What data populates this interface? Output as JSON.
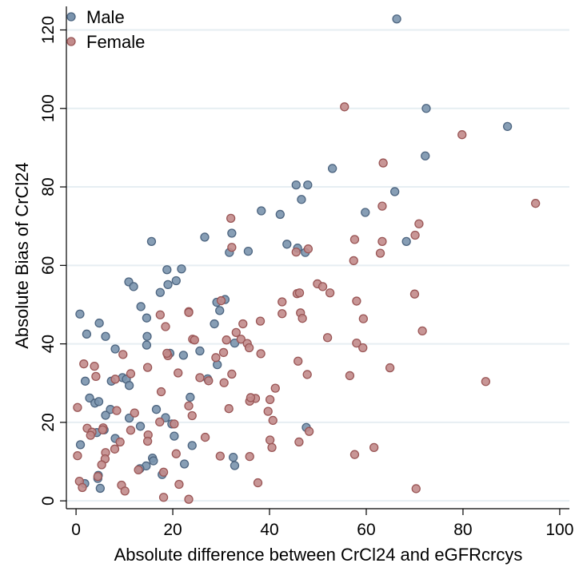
{
  "chart_data": {
    "type": "scatter",
    "xlabel": "Absolute difference between CrCl24 and eGFRcrcys",
    "ylabel": "Absolute Bias of CrCl24",
    "xlim": [
      -2,
      102
    ],
    "ylim": [
      -2,
      126
    ],
    "xticks": [
      0,
      20,
      40,
      60,
      80,
      100
    ],
    "yticks": [
      0,
      20,
      40,
      60,
      80,
      100,
      120
    ],
    "grid": true,
    "legend_position": "top-left",
    "series": [
      {
        "name": "Male",
        "color": "#5a7a9a",
        "points": [
          [
            66.3,
            122.8
          ],
          [
            72.4,
            100
          ],
          [
            89.2,
            95.4
          ],
          [
            72.2,
            87.9
          ],
          [
            53,
            84.7
          ],
          [
            45.5,
            80.5
          ],
          [
            47.9,
            80.5
          ],
          [
            65.9,
            78.8
          ],
          [
            46.6,
            76.8
          ],
          [
            38.3,
            73.9
          ],
          [
            42.2,
            73
          ],
          [
            59.8,
            73.5
          ],
          [
            26.6,
            67.2
          ],
          [
            32.2,
            68.2
          ],
          [
            15.6,
            66.1
          ],
          [
            68.3,
            66.1
          ],
          [
            43.6,
            65.4
          ],
          [
            45.8,
            64.4
          ],
          [
            31.7,
            63.3
          ],
          [
            35.6,
            63.6
          ],
          [
            47.4,
            63.3
          ],
          [
            18.8,
            58.9
          ],
          [
            21.8,
            59.1
          ],
          [
            10.9,
            55.8
          ],
          [
            20.7,
            56.1
          ],
          [
            19,
            55.1
          ],
          [
            11.9,
            54.6
          ],
          [
            17.4,
            53.1
          ],
          [
            13.4,
            49.5
          ],
          [
            30.8,
            51.3
          ],
          [
            29.1,
            50.6
          ],
          [
            29.7,
            48.5
          ],
          [
            0.8,
            47.6
          ],
          [
            14.6,
            46.6
          ],
          [
            4.8,
            45.3
          ],
          [
            28.6,
            45.1
          ],
          [
            6.1,
            41.9
          ],
          [
            2.2,
            42.5
          ],
          [
            14.7,
            41.9
          ],
          [
            14.6,
            39.7
          ],
          [
            32.8,
            40.2
          ],
          [
            8.1,
            38.7
          ],
          [
            19.4,
            37.6
          ],
          [
            22.2,
            37.1
          ],
          [
            25.6,
            38.2
          ],
          [
            9.6,
            31.4
          ],
          [
            10.4,
            31
          ],
          [
            7.3,
            30.5
          ],
          [
            11,
            29.4
          ],
          [
            1.9,
            30.5
          ],
          [
            27.2,
            31.1
          ],
          [
            29.2,
            34.7
          ],
          [
            23.6,
            26.4
          ],
          [
            2.8,
            26.2
          ],
          [
            3.9,
            24.9
          ],
          [
            4.7,
            25.3
          ],
          [
            11,
            21.1
          ],
          [
            18.5,
            21.2
          ],
          [
            13.3,
            19
          ],
          [
            19.8,
            19.6
          ],
          [
            47.6,
            18.7
          ],
          [
            16.6,
            23.3
          ],
          [
            7.1,
            23.3
          ],
          [
            4.3,
            17.4
          ],
          [
            5.8,
            18.1
          ],
          [
            0.9,
            14.3
          ],
          [
            6.1,
            21.8
          ],
          [
            24,
            14.1
          ],
          [
            20.3,
            16.5
          ],
          [
            8.1,
            15.9
          ],
          [
            15.8,
            10.9
          ],
          [
            16,
            10.2
          ],
          [
            22.4,
            9.4
          ],
          [
            32.5,
            11.1
          ],
          [
            32.8,
            9
          ],
          [
            14.5,
            8.9
          ],
          [
            13.2,
            8.2
          ],
          [
            17.8,
            6.7
          ],
          [
            4.5,
            5.7
          ],
          [
            4.6,
            6.5
          ],
          [
            5,
            3.2
          ],
          [
            1.8,
            4.4
          ]
        ]
      },
      {
        "name": "Female",
        "color": "#b06a6a",
        "points": [
          [
            55.5,
            100.4
          ],
          [
            79.8,
            93.3
          ],
          [
            63.5,
            86.1
          ],
          [
            95,
            75.8
          ],
          [
            63.3,
            75.1
          ],
          [
            32,
            72
          ],
          [
            70.9,
            70.6
          ],
          [
            70.1,
            67.7
          ],
          [
            57.6,
            66.6
          ],
          [
            63.3,
            66.1
          ],
          [
            32.2,
            64.6
          ],
          [
            48,
            64.2
          ],
          [
            45.5,
            63.4
          ],
          [
            62.9,
            63.1
          ],
          [
            57.4,
            61.2
          ],
          [
            49.9,
            55.3
          ],
          [
            51,
            54.6
          ],
          [
            45.7,
            52.8
          ],
          [
            46.2,
            53
          ],
          [
            52.5,
            53
          ],
          [
            70,
            52.7
          ],
          [
            58,
            50.9
          ],
          [
            42.6,
            50.7
          ],
          [
            42.6,
            47.7
          ],
          [
            46.4,
            47.9
          ],
          [
            46.8,
            46.5
          ],
          [
            59.4,
            46.4
          ],
          [
            38.1,
            45.8
          ],
          [
            34.5,
            45.1
          ],
          [
            23.3,
            48.2
          ],
          [
            23.3,
            48
          ],
          [
            30,
            51
          ],
          [
            17.4,
            47.4
          ],
          [
            18.5,
            44.4
          ],
          [
            33.1,
            42.9
          ],
          [
            34.1,
            41.2
          ],
          [
            31.1,
            41
          ],
          [
            24.1,
            41.2
          ],
          [
            24.5,
            41
          ],
          [
            52,
            41.6
          ],
          [
            58,
            40.2
          ],
          [
            59.3,
            39
          ],
          [
            71.6,
            43.3
          ],
          [
            35.4,
            40.1
          ],
          [
            35.8,
            39
          ],
          [
            38.2,
            37.5
          ],
          [
            30.5,
            37.8
          ],
          [
            28.9,
            36.5
          ],
          [
            19,
            37
          ],
          [
            18.8,
            37.6
          ],
          [
            9.7,
            37.3
          ],
          [
            1.6,
            34.9
          ],
          [
            3.8,
            34.3
          ],
          [
            14.8,
            34
          ],
          [
            32.2,
            32.3
          ],
          [
            21.1,
            32.6
          ],
          [
            25.6,
            31.4
          ],
          [
            27.4,
            30.6
          ],
          [
            11.3,
            32.4
          ],
          [
            4.1,
            31.7
          ],
          [
            8.1,
            31
          ],
          [
            47.8,
            32.2
          ],
          [
            56.6,
            31.9
          ],
          [
            84.7,
            30.4
          ],
          [
            64.9,
            33.9
          ],
          [
            45.9,
            35.6
          ],
          [
            30.6,
            30.1
          ],
          [
            41.2,
            28.7
          ],
          [
            17.6,
            27.8
          ],
          [
            37.1,
            26.1
          ],
          [
            35.9,
            25.4
          ],
          [
            40.1,
            25.8
          ],
          [
            36.1,
            26.3
          ],
          [
            23.3,
            24.2
          ],
          [
            24,
            21.7
          ],
          [
            31.6,
            23.5
          ],
          [
            39.7,
            22.8
          ],
          [
            40.7,
            20.5
          ],
          [
            17.3,
            20.1
          ],
          [
            20.3,
            19.6
          ],
          [
            0.3,
            23.8
          ],
          [
            8.4,
            23
          ],
          [
            12.1,
            22.4
          ],
          [
            2.3,
            18.5
          ],
          [
            3.3,
            17.5
          ],
          [
            3,
            16.7
          ],
          [
            8,
            13.2
          ],
          [
            14.9,
            16.8
          ],
          [
            14.8,
            15.2
          ],
          [
            9.1,
            15
          ],
          [
            11.3,
            18
          ],
          [
            5.6,
            18.6
          ],
          [
            5.5,
            18.1
          ],
          [
            48.2,
            17.7
          ],
          [
            40.1,
            15.5
          ],
          [
            46.1,
            15
          ],
          [
            26.7,
            16.2
          ],
          [
            40.5,
            13.6
          ],
          [
            61.6,
            13.6
          ],
          [
            57.6,
            11.8
          ],
          [
            35.9,
            11.3
          ],
          [
            29.8,
            11.4
          ],
          [
            6.1,
            12.3
          ],
          [
            20.7,
            12
          ],
          [
            0.3,
            11.5
          ],
          [
            6,
            10.7
          ],
          [
            5.3,
            9.2
          ],
          [
            18.1,
            7.3
          ],
          [
            12.9,
            7.9
          ],
          [
            4.5,
            6.2
          ],
          [
            37.6,
            4.6
          ],
          [
            21.3,
            4.2
          ],
          [
            0.7,
            5
          ],
          [
            1.3,
            3.4
          ],
          [
            9.4,
            4
          ],
          [
            10.1,
            2.5
          ],
          [
            18.1,
            0.9
          ],
          [
            23.3,
            0.4
          ],
          [
            70.3,
            3.1
          ]
        ]
      }
    ]
  }
}
